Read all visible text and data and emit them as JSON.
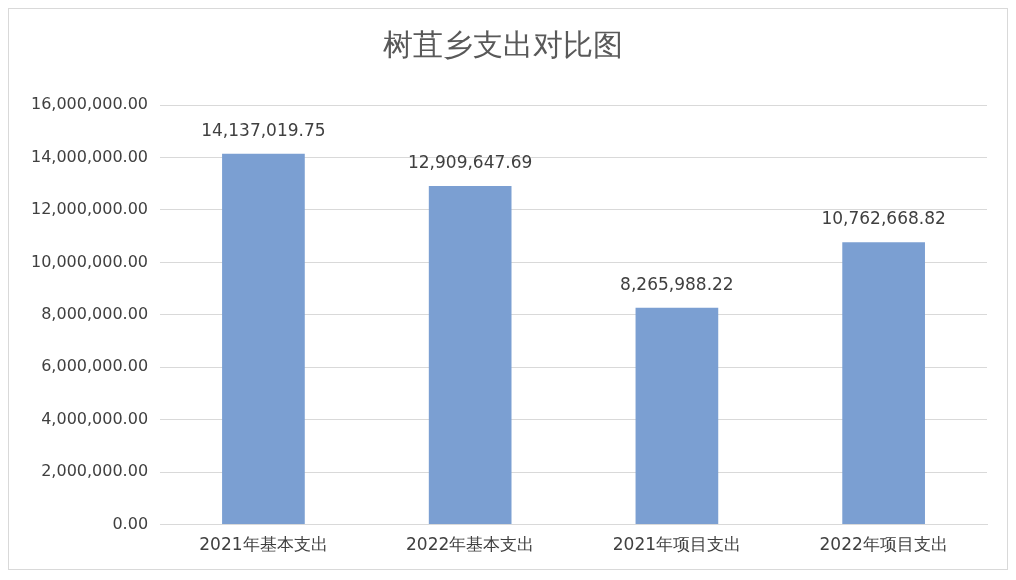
{
  "chart_data": {
    "type": "bar",
    "title": "树苴乡支出对比图",
    "categories": [
      "2021年基本支出",
      "2022年基本支出",
      "2021年项目支出",
      "2022年项目支出"
    ],
    "values": [
      14137019.75,
      12909647.69,
      8265988.22,
      10762668.82
    ],
    "value_labels": [
      "14,137,019.75",
      "12,909,647.69",
      "8,265,988.22",
      "10,762,668.82"
    ],
    "color": "#7b9fd2",
    "ylim": [
      0,
      16000000
    ],
    "yticks": [
      {
        "value": 0,
        "label": "0.00"
      },
      {
        "value": 2000000,
        "label": "2,000,000.00"
      },
      {
        "value": 4000000,
        "label": "4,000,000.00"
      },
      {
        "value": 6000000,
        "label": "6,000,000.00"
      },
      {
        "value": 8000000,
        "label": "8,000,000.00"
      },
      {
        "value": 10000000,
        "label": "10,000,000.00"
      },
      {
        "value": 12000000,
        "label": "12,000,000.00"
      },
      {
        "value": 14000000,
        "label": "14,000,000.00"
      },
      {
        "value": 16000000,
        "label": "16,000,000.00"
      }
    ],
    "grid": "y",
    "legend": false
  }
}
